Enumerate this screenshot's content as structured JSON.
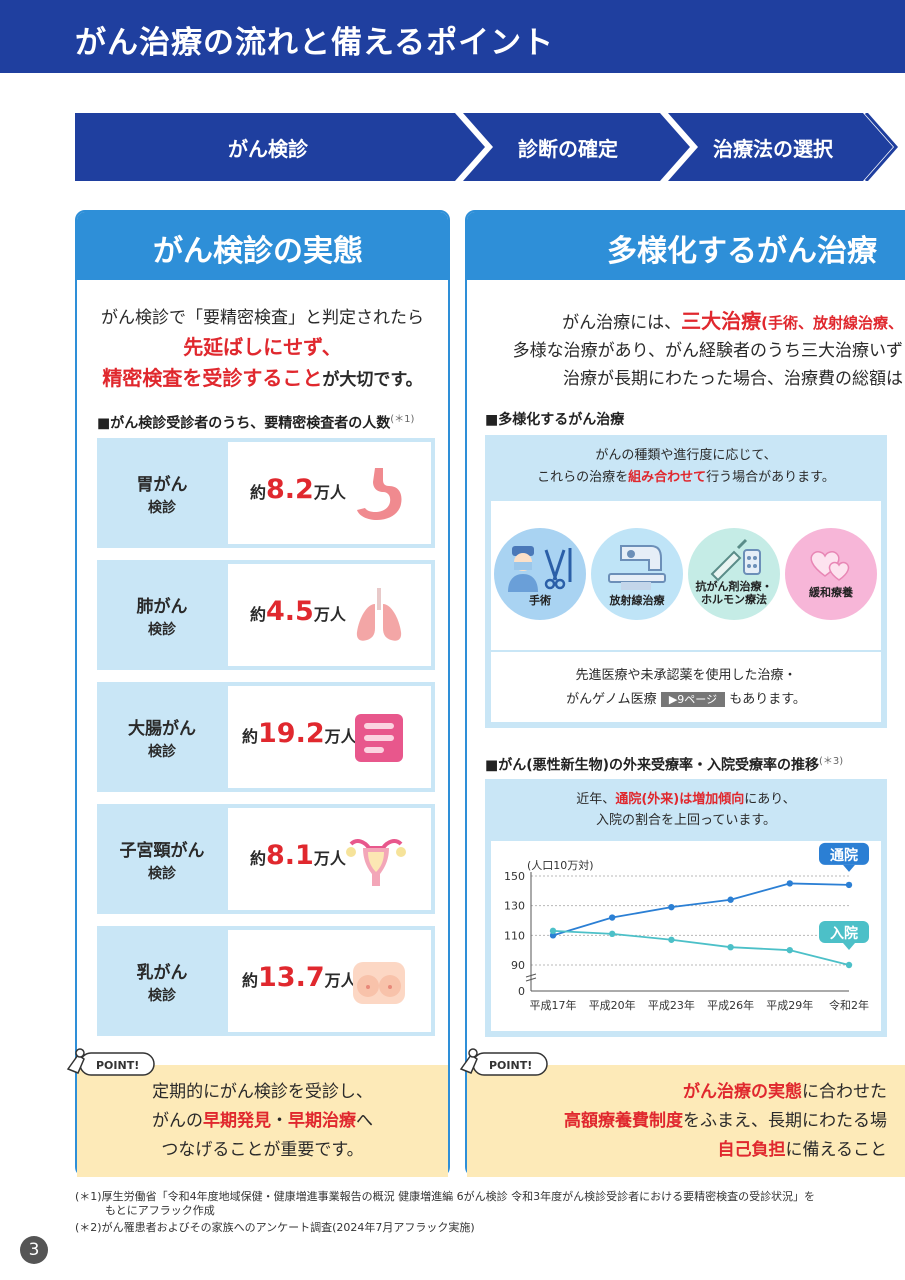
{
  "header": {
    "title": "がん治療の流れと備えるポイント"
  },
  "steps": [
    "がん検診",
    "診断の確定",
    "治療法の選択"
  ],
  "left": {
    "heading": "がん検診の実態",
    "lead_line1": "がん検診で「要精密検査」と判定されたら",
    "lead_line2": "先延ばしにせず、",
    "lead_line3_red": "精密検査を受診すること",
    "lead_line3_rest": "が大切です。",
    "section_title": "■がん検診受診者のうち、要精密検査者の人数",
    "section_note": "(＊1)",
    "exams": [
      {
        "name": "胃がん",
        "sub": "検診",
        "prefix": "約",
        "value": "8.2",
        "unit": "万人",
        "icon": "stomach-icon"
      },
      {
        "name": "肺がん",
        "sub": "検診",
        "prefix": "約",
        "value": "4.5",
        "unit": "万人",
        "icon": "lungs-icon"
      },
      {
        "name": "大腸がん",
        "sub": "検診",
        "prefix": "約",
        "value": "19.2",
        "unit": "万人",
        "icon": "intestine-icon"
      },
      {
        "name": "子宮頸がん",
        "sub": "検診",
        "prefix": "約",
        "value": "8.1",
        "unit": "万人",
        "icon": "uterus-icon"
      },
      {
        "name": "乳がん",
        "sub": "検診",
        "prefix": "約",
        "value": "13.7",
        "unit": "万人",
        "icon": "breast-icon"
      }
    ],
    "point_label": "POINT!",
    "point_line1": "定期的にがん検診を受診し、",
    "point_line2_a": "がんの",
    "point_line2_red1": "早期発見",
    "point_line2_b": "・",
    "point_line2_red2": "早期治療",
    "point_line2_c": "へ",
    "point_line3": "つなげることが重要です。"
  },
  "right": {
    "heading": "多様化するがん治療",
    "lead_line1_a": "がん治療には、",
    "lead_line1_red": "三大治療",
    "lead_line1_red_small": "(手術、放射線治療、",
    "lead_line2": "多様な治療があり、がん経験者のうち三大治療いず",
    "lead_line3": "治療が長期にわたった場合、治療費の総額は",
    "section1_title": "■多様化するがん治療",
    "types_line1": "がんの種類や進行度に応じて、",
    "types_line2_a": "これらの治療を",
    "types_line2_red": "組み合わせて",
    "types_line2_b": "行う場合があります。",
    "treatments": [
      {
        "label": "手術",
        "icon": "surgeon-icon",
        "color": "#a9d3f2"
      },
      {
        "label": "放射線治療",
        "icon": "radiation-machine-icon",
        "color": "#bfe4f7"
      },
      {
        "label": "抗がん剤治療・",
        "label2": "ホルモン療法",
        "icon": "medicine-icon",
        "color": "#c5ece6"
      },
      {
        "label": "緩和療養",
        "icon": "hearts-icon",
        "color": "#f7b6d8"
      }
    ],
    "advanced_line1": "先進医療や未承認薬を使用した治療・",
    "advanced_line2_a": "がんゲノム医療",
    "advanced_badge": "▶9ページ",
    "advanced_line2_b": "もあります。",
    "section2_title": "■がん(悪性新生物)の外来受療率・入院受療率の推移",
    "section2_note": "(＊3)",
    "trend_line1_a": "近年、",
    "trend_line1_red": "通院(外来)は増加傾向",
    "trend_line1_b": "にあり、",
    "trend_line2": "入院の割合を上回っています。",
    "point_label": "POINT!",
    "point_line1_red": "がん治療の実態",
    "point_line1_rest": "に合わせた",
    "point_line2_red": "高額療養費制度",
    "point_line2_rest": "をふまえ、長期にわたる場",
    "point_line3_red": "自己負担",
    "point_line3_rest": "に備えること"
  },
  "chart_data": {
    "type": "line",
    "unit_label": "(人口10万対)",
    "categories": [
      "平成17年",
      "平成20年",
      "平成23年",
      "平成26年",
      "平成29年",
      "令和2年"
    ],
    "y_ticks": [
      0,
      90,
      110,
      130,
      150
    ],
    "series": [
      {
        "name": "通院",
        "color": "#2b7fd4",
        "values": [
          110,
          122,
          129,
          134,
          145,
          144
        ]
      },
      {
        "name": "入院",
        "color": "#4cc0c8",
        "values": [
          113,
          111,
          107,
          102,
          100,
          90
        ]
      }
    ]
  },
  "footnotes": {
    "n1_line1": "(＊1)厚生労働省「令和4年度地域保健・健康増進事業報告の概況 健康増進編 6がん検診 令和3年度がん検診受診者における要精密検査の受診状況」を",
    "n1_line2": "もとにアフラック作成",
    "n2": "(＊2)がん罹患者およびその家族へのアンケート調査(2024年7月アフラック実施)"
  },
  "page_number": "3"
}
